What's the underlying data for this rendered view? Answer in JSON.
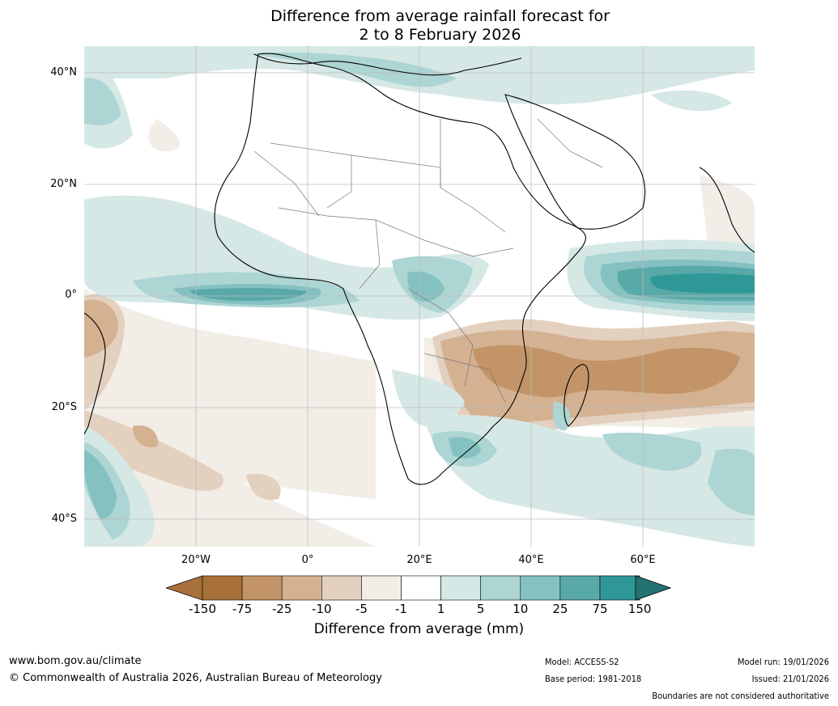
{
  "title": {
    "line1": "Difference from average rainfall forecast for",
    "line2": "2 to 8 February 2026"
  },
  "map": {
    "lat_labels": [
      "40°N",
      "20°N",
      "0°",
      "20°S",
      "40°S"
    ],
    "lon_labels": [
      "20°W",
      "0°",
      "20°E",
      "40°E",
      "60°E"
    ]
  },
  "colorbar": {
    "ticks": [
      "-150",
      "-75",
      "-25",
      "-10",
      "-5",
      "-1",
      "1",
      "5",
      "10",
      "25",
      "75",
      "150"
    ],
    "colors": [
      "#a8713a",
      "#c29467",
      "#d4b191",
      "#e3d0bf",
      "#f2ede7",
      "#ffffff",
      "#d5e8e6",
      "#acd5d3",
      "#84c1c0",
      "#59a9a9",
      "#2f9896"
    ],
    "under_color": "#a8713a",
    "over_color": "#247373",
    "label": "Difference from average (mm)"
  },
  "footer": {
    "website": "www.bom.gov.au/climate",
    "copyright": "© Commonwealth of Australia 2026, Australian Bureau of Meteorology",
    "model": "Model: ACCESS-S2",
    "base_period": "Base period: 1981-2018",
    "model_run": "Model run: 19/01/2026",
    "issued": "Issued: 21/01/2026",
    "disclaimer": "Boundaries are not considered authoritative"
  }
}
